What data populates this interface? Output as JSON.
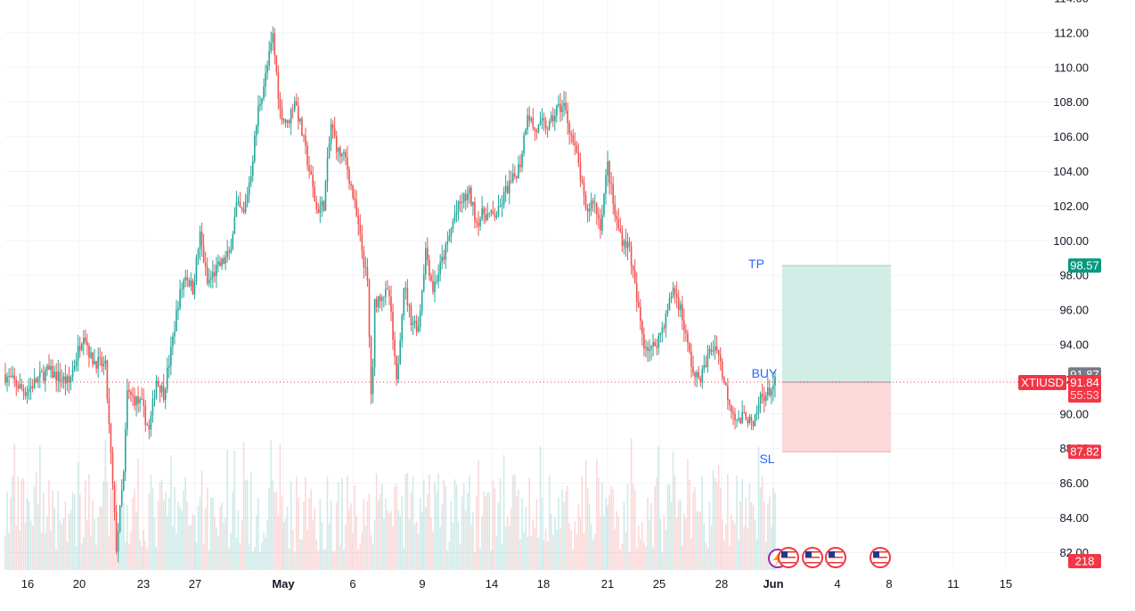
{
  "chart_data": {
    "type": "candlestick",
    "symbol": "XTIUSD",
    "y_axis": {
      "ticks": [
        82,
        84,
        86,
        88,
        90,
        92,
        94,
        96,
        98,
        100,
        102,
        104,
        106,
        108,
        110,
        112,
        114
      ],
      "range": [
        81.5,
        114.5
      ]
    },
    "x_axis": {
      "labels": [
        "16",
        "20",
        "23",
        "27",
        "May",
        "6",
        "9",
        "14",
        "18",
        "21",
        "25",
        "28",
        "Jun",
        "4",
        "8",
        "11",
        "15"
      ],
      "bold_labels": [
        "May",
        "Jun"
      ]
    },
    "price_path": [
      [
        0,
        92.3
      ],
      [
        3,
        91.3
      ],
      [
        6,
        92.5
      ],
      [
        9,
        91.8
      ],
      [
        11,
        94.8
      ],
      [
        12,
        93.2
      ],
      [
        14,
        92.7
      ],
      [
        15.5,
        82.3
      ],
      [
        16.5,
        86.5
      ],
      [
        17,
        91.2
      ],
      [
        19,
        90.5
      ],
      [
        20,
        89.0
      ],
      [
        21,
        92.0
      ],
      [
        22,
        91.2
      ],
      [
        23,
        93.6
      ],
      [
        24,
        96.5
      ],
      [
        25,
        98.1
      ],
      [
        26,
        97.2
      ],
      [
        27,
        100.3
      ],
      [
        28,
        97.5
      ],
      [
        29,
        98.2
      ],
      [
        30,
        98.7
      ],
      [
        31,
        99.2
      ],
      [
        32,
        102.0
      ],
      [
        33,
        101.5
      ],
      [
        34,
        104.0
      ],
      [
        35,
        107.6
      ],
      [
        36,
        109.5
      ],
      [
        37,
        111.8
      ],
      [
        38,
        107.5
      ],
      [
        39,
        106.7
      ],
      [
        40,
        108.2
      ],
      [
        41,
        106.2
      ],
      [
        42,
        104.1
      ],
      [
        43,
        101.8
      ],
      [
        44,
        102.1
      ],
      [
        45,
        106.7
      ],
      [
        46,
        105.1
      ],
      [
        47,
        104.7
      ],
      [
        48,
        102.6
      ],
      [
        49,
        100.1
      ],
      [
        50,
        97.5
      ],
      [
        50.6,
        90.0
      ],
      [
        51,
        96.4
      ],
      [
        52,
        97.0
      ],
      [
        53,
        96.8
      ],
      [
        54,
        91.7
      ],
      [
        55,
        97.5
      ],
      [
        56,
        95.5
      ],
      [
        57,
        95.0
      ],
      [
        58,
        99.5
      ],
      [
        59,
        97.2
      ],
      [
        60,
        98.5
      ],
      [
        61,
        99.8
      ],
      [
        62,
        101.5
      ],
      [
        63,
        102.3
      ],
      [
        64,
        102.7
      ],
      [
        65,
        101.1
      ],
      [
        66,
        101.6
      ],
      [
        67,
        101.4
      ],
      [
        68,
        101.6
      ],
      [
        69,
        102.9
      ],
      [
        70,
        103.5
      ],
      [
        71,
        104.5
      ],
      [
        72,
        107.5
      ],
      [
        73,
        106.3
      ],
      [
        74,
        106.7
      ],
      [
        75,
        106.6
      ],
      [
        76,
        107.6
      ],
      [
        77,
        107.8
      ],
      [
        78,
        106.1
      ],
      [
        79,
        104.4
      ],
      [
        80,
        101.6
      ],
      [
        81,
        102.4
      ],
      [
        82,
        100.9
      ],
      [
        83,
        104.4
      ],
      [
        84,
        101.4
      ],
      [
        85,
        100.1
      ],
      [
        86,
        99.6
      ],
      [
        87,
        96.5
      ],
      [
        88,
        94.1
      ],
      [
        89,
        93.7
      ],
      [
        90,
        94.4
      ],
      [
        91,
        95.6
      ],
      [
        92,
        97.3
      ],
      [
        93,
        96.1
      ],
      [
        94,
        93.9
      ],
      [
        95,
        92.0
      ],
      [
        96,
        92.3
      ],
      [
        97,
        93.6
      ],
      [
        98,
        94.0
      ],
      [
        99,
        91.8
      ],
      [
        100,
        90.4
      ],
      [
        101,
        89.5
      ],
      [
        102,
        90.0
      ],
      [
        103,
        89.1
      ],
      [
        104,
        91.0
      ],
      [
        105,
        91.2
      ],
      [
        106,
        91.8
      ]
    ],
    "current_price": 91.84,
    "prior_close": 91.87,
    "countdown": "55:53",
    "volume_label": "218",
    "position": {
      "side": "BUY",
      "entry": 91.84,
      "take_profit": 98.57,
      "stop_loss": 87.82,
      "labels": {
        "tp": "TP",
        "sl": "SL",
        "buy": "BUY"
      }
    },
    "colors": {
      "up": "#26a69a",
      "down": "#ef5350",
      "tp_zone": "#cdeae3",
      "sl_zone": "#fbd4d6",
      "grid": "#f0f3fa",
      "axis_text": "#131722",
      "label_blue": "#2962ff",
      "price_line": "#f23645",
      "prior_close_badge": "#787b86",
      "tp_badge": "#089981",
      "sl_badge": "#f23645"
    },
    "event_icons": [
      "us-flag-icon",
      "us-flag-icon",
      "us-flag-icon",
      "us-flag-icon"
    ]
  }
}
